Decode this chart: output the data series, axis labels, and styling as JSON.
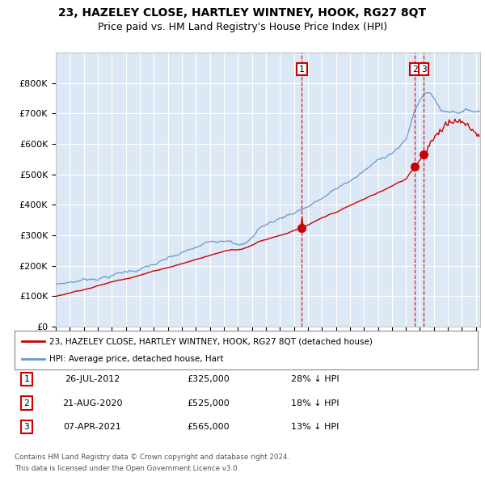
{
  "title": "23, HAZELEY CLOSE, HARTLEY WINTNEY, HOOK, RG27 8QT",
  "subtitle": "Price paid vs. HM Land Registry's House Price Index (HPI)",
  "legend_label_red": "23, HAZELEY CLOSE, HARTLEY WINTNEY, HOOK, RG27 8QT (detached house)",
  "legend_label_blue": "HPI: Average price, detached house, Hart",
  "transactions": [
    {
      "label": "1",
      "date": "26-JUL-2012",
      "price": 325000,
      "pct": "28%",
      "dir": "↓",
      "x_year": 2012.57
    },
    {
      "label": "2",
      "date": "21-AUG-2020",
      "price": 525000,
      "pct": "18%",
      "dir": "↓",
      "x_year": 2020.64
    },
    {
      "label": "3",
      "date": "07-APR-2021",
      "price": 565000,
      "pct": "13%",
      "dir": "↓",
      "x_year": 2021.27
    }
  ],
  "footer_line1": "Contains HM Land Registry data © Crown copyright and database right 2024.",
  "footer_line2": "This data is licensed under the Open Government Licence v3.0.",
  "ylim": [
    0,
    900000
  ],
  "yticks": [
    0,
    100000,
    200000,
    300000,
    400000,
    500000,
    600000,
    700000,
    800000
  ],
  "xlim_start": 1995,
  "xlim_end": 2025.3,
  "background_color": "#dce8f5",
  "red_color": "#cc0000",
  "blue_color": "#6699cc",
  "grid_color": "#ffffff",
  "title_fontsize": 10,
  "subtitle_fontsize": 9
}
